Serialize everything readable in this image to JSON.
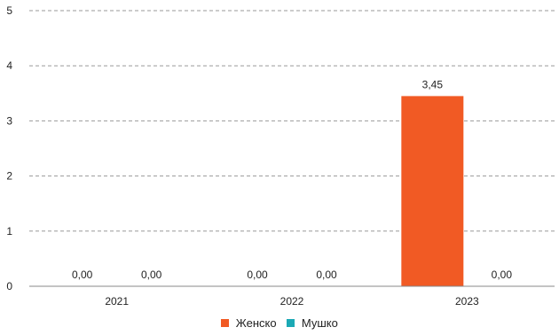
{
  "chart_data": {
    "type": "bar",
    "categories": [
      "2021",
      "2022",
      "2023"
    ],
    "series": [
      {
        "name": "Женско",
        "values": [
          0.0,
          0.0,
          3.45
        ],
        "labels": [
          "0,00",
          "0,00",
          "3,45"
        ],
        "color": "#F15A24"
      },
      {
        "name": "Мушко",
        "values": [
          0.0,
          0.0,
          0.0
        ],
        "labels": [
          "0,00",
          "0,00",
          "0,00"
        ],
        "color": "#1BA9B5"
      }
    ],
    "ylim": [
      0,
      5
    ],
    "yticks": [
      "0",
      "1",
      "2",
      "3",
      "4",
      "5"
    ],
    "grid": true,
    "legend": "bottom-center"
  }
}
